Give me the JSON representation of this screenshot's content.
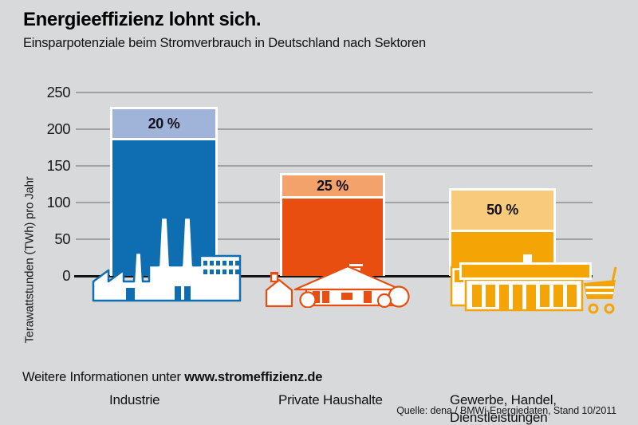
{
  "header": {
    "title": "Energieeffizienz lohnt sich.",
    "subtitle": "Einsparpotenziale beim Stromverbrauch in Deutschland nach Sektoren"
  },
  "chart_data": {
    "type": "bar",
    "title": "Einsparpotenziale beim Stromverbrauch in Deutschland nach Sektoren",
    "xlabel": "",
    "ylabel": "Terawattstunden (TWh) pro Jahr",
    "ylim": [
      0,
      250
    ],
    "yticks": [
      0,
      50,
      100,
      150,
      200,
      250
    ],
    "grid": true,
    "unit": "TWh pro Jahr",
    "bars": [
      {
        "label": "Industrie",
        "total_twh": 230,
        "savings_percent": 20,
        "savings_label": "20 %",
        "color": "#0e6eb1",
        "color_light": "#9fb4d8",
        "icon": "factory-icon"
      },
      {
        "label": "Private Haushalte",
        "total_twh": 140,
        "savings_percent": 25,
        "savings_label": "25 %",
        "color": "#e84e0f",
        "color_light": "#f3a26c",
        "icon": "house-icon"
      },
      {
        "label": "Gewerbe, Handel,\nDienstleistungen",
        "total_twh": 120,
        "savings_percent": 50,
        "savings_label": "50 %",
        "color": "#f4a405",
        "color_light": "#f8ca7b",
        "icon": "store-icon"
      }
    ]
  },
  "footer": {
    "info_prefix": "Weitere Informationen unter ",
    "info_link": "www.stromeffizienz.de",
    "source": "Quelle: dena / BMWi-Energiedaten, Stand 10/2011"
  }
}
